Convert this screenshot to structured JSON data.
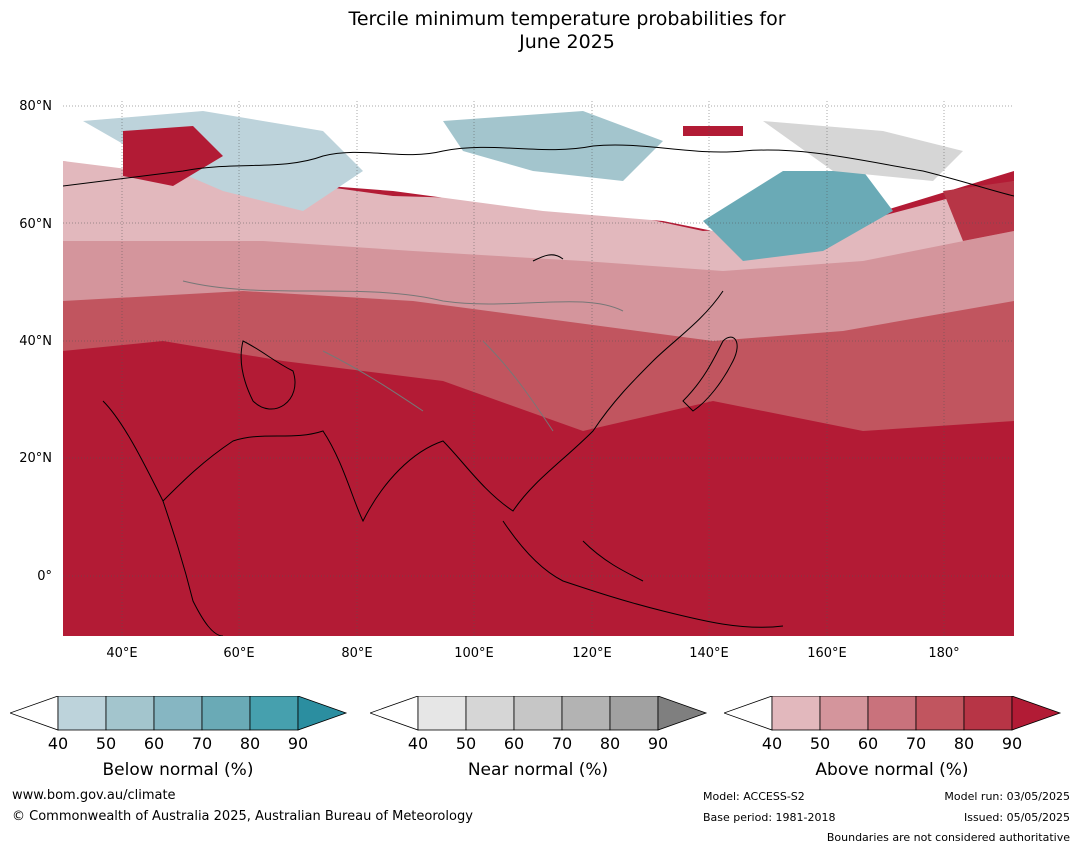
{
  "title_line1": "Tercile minimum temperature probabilities for",
  "title_line2": "June 2025",
  "map": {
    "lon_range": [
      30,
      192
    ],
    "lat_range": [
      -10,
      81
    ],
    "lat_labels": [
      "80°N",
      "60°N",
      "40°N",
      "20°N",
      "0°"
    ],
    "lon_labels": [
      "40°E",
      "60°E",
      "80°E",
      "100°E",
      "120°E",
      "140°E",
      "160°E",
      "180°"
    ],
    "ocean_color": "#b31b35",
    "regions": [
      "Below normal",
      "Near normal",
      "Above normal"
    ]
  },
  "colorbars": [
    {
      "name": "below",
      "label": "Below normal (%)",
      "ticks": [
        "40",
        "50",
        "60",
        "70",
        "80",
        "90"
      ],
      "colors": [
        "#ffffff",
        "#bdd3db",
        "#a3c5cd",
        "#86b6c2",
        "#6aaab6",
        "#46a0ae",
        "#2b8ea0"
      ]
    },
    {
      "name": "near",
      "label": "Near normal (%)",
      "ticks": [
        "40",
        "50",
        "60",
        "70",
        "80",
        "90"
      ],
      "colors": [
        "#ffffff",
        "#e6e6e6",
        "#d6d6d6",
        "#c6c6c6",
        "#b3b3b3",
        "#a1a1a1",
        "#7f7f7f"
      ]
    },
    {
      "name": "above",
      "label": "Above normal (%)",
      "ticks": [
        "40",
        "50",
        "60",
        "70",
        "80",
        "90"
      ],
      "colors": [
        "#ffffff",
        "#e2b8bd",
        "#d4959c",
        "#c9727c",
        "#c1555f",
        "#b73546",
        "#b21b35"
      ]
    }
  ],
  "footer": {
    "website": "www.bom.gov.au/climate",
    "copyright": "© Commonwealth of Australia 2025, Australian Bureau of Meteorology",
    "model": "Model: ACCESS-S2",
    "base_period": "Base period: 1981-2018",
    "model_run": "Model run: 03/05/2025",
    "issued": "Issued: 05/05/2025",
    "disclaimer": "Boundaries are not considered authoritative"
  }
}
